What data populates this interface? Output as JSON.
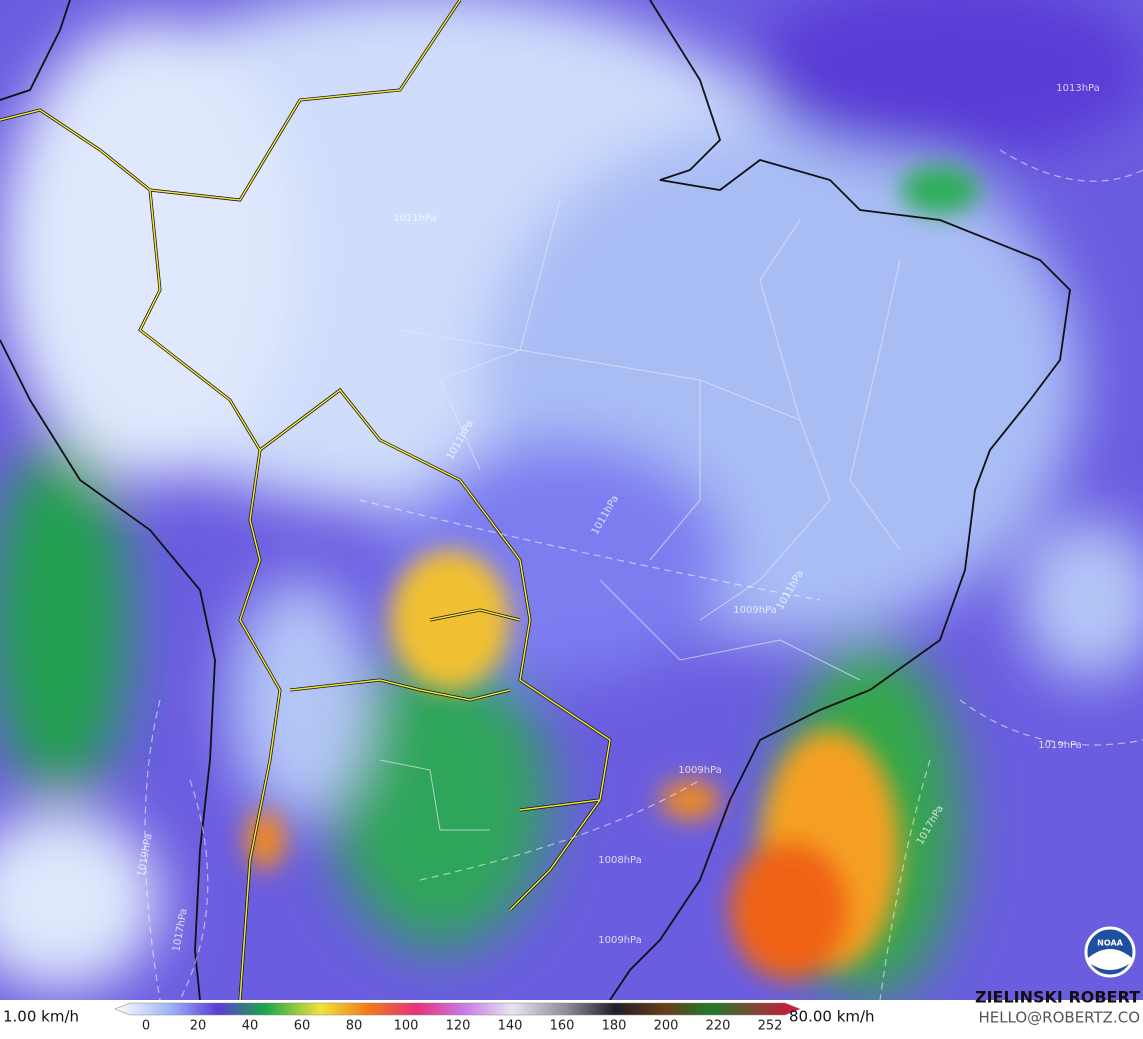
{
  "legend": {
    "min_label": "1.00 km/h",
    "max_label": "80.00 km/h",
    "ticks": [
      "0",
      "20",
      "40",
      "60",
      "80",
      "100",
      "120",
      "140",
      "160",
      "180",
      "200",
      "220",
      "252"
    ]
  },
  "credits": {
    "author": "ZIELINSKI ROBERT",
    "contact": "HELLO@ROBERTZ.CO",
    "logo": "NOAA"
  },
  "isobars": [
    "1013hPa",
    "1011hPa",
    "1011hPa",
    "1011hPa",
    "1011hPa",
    "1009hPa",
    "1009hPa",
    "1008hPa",
    "1019hPa",
    "1017hPa",
    "1019hPa",
    "1017hPa",
    "1009hPa"
  ]
}
